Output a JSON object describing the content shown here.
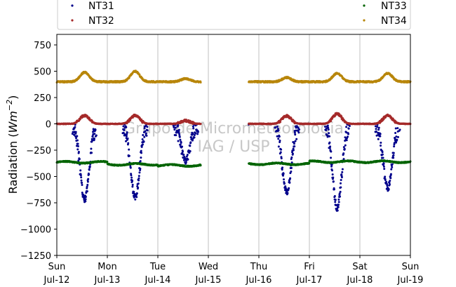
{
  "chart_data": {
    "type": "scatter",
    "title": "",
    "ylabel": "Radiation (Wm⁻²)",
    "ylabel_base": "Radiation",
    "ylabel_unit": "Wm",
    "ylabel_exp": "−2",
    "xlabel": "",
    "ylim": [
      -1250,
      850
    ],
    "xlim": [
      0,
      7
    ],
    "grid_x": true,
    "grid_y": false,
    "legend_position": "top",
    "yticks": [
      {
        "value": 750,
        "label": "750"
      },
      {
        "value": 500,
        "label": "500"
      },
      {
        "value": 250,
        "label": "250"
      },
      {
        "value": 0,
        "label": "0"
      },
      {
        "value": -250,
        "label": "−250"
      },
      {
        "value": -500,
        "label": "−500"
      },
      {
        "value": -750,
        "label": "−750"
      },
      {
        "value": -1000,
        "label": "−1000"
      },
      {
        "value": -1250,
        "label": "−1250"
      }
    ],
    "xticks": [
      {
        "day": 0,
        "line1": "Sun",
        "line2": "Jul-12"
      },
      {
        "day": 1,
        "line1": "Mon",
        "line2": "Jul-13"
      },
      {
        "day": 2,
        "line1": "Tue",
        "line2": "Jul-14"
      },
      {
        "day": 3,
        "line1": "Wed",
        "line2": "Jul-15"
      },
      {
        "day": 4,
        "line1": "Thu",
        "line2": "Jul-16"
      },
      {
        "day": 5,
        "line1": "Fri",
        "line2": "Jul-17"
      },
      {
        "day": 6,
        "line1": "Sat",
        "line2": "Jul-18"
      },
      {
        "day": 7,
        "line1": "Sun",
        "line2": "Jul-19"
      }
    ],
    "watermark": [
      "Grupo de Micrometeorologia",
      "IAG / USP"
    ],
    "series": [
      {
        "name": "NT31",
        "color": "#00008b",
        "key": "nt31"
      },
      {
        "name": "NT32",
        "color": "#a52a2a",
        "key": "nt32"
      },
      {
        "name": "NT33",
        "color": "#006400",
        "key": "nt33"
      },
      {
        "name": "NT34",
        "color": "#b8860b",
        "key": "nt34"
      }
    ],
    "data_coverage": [
      [
        0,
        2.85
      ],
      [
        3.8,
        7
      ]
    ],
    "daily_summary": [
      {
        "day": "Jul-12",
        "nt31_min": -720,
        "nt32_max": 80,
        "nt33_mean": -365,
        "nt34_max": 490
      },
      {
        "day": "Jul-13",
        "nt31_min": -700,
        "nt32_max": 80,
        "nt33_mean": -385,
        "nt34_max": 500
      },
      {
        "day": "Jul-14",
        "nt31_min": -350,
        "nt32_max": 30,
        "nt33_mean": -395,
        "nt34_max": 430
      },
      {
        "day": "Jul-16",
        "nt31_min": -650,
        "nt32_max": 75,
        "nt33_mean": -380,
        "nt34_max": 440
      },
      {
        "day": "Jul-17",
        "nt31_min": -800,
        "nt32_max": 95,
        "nt33_mean": -360,
        "nt34_max": 480
      },
      {
        "day": "Jul-18",
        "nt31_min": -610,
        "nt32_max": 80,
        "nt33_mean": -360,
        "nt34_max": 480
      }
    ]
  }
}
